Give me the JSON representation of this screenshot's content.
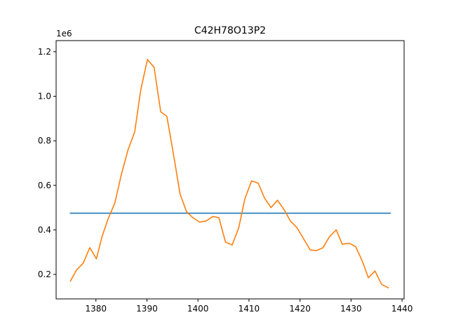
{
  "chart_data": {
    "type": "line",
    "title": "C42H78O13P2",
    "xlabel": "",
    "ylabel": "",
    "y_offset_label": "1e6",
    "xlim": [
      1372.2,
      1440.4
    ],
    "ylim": [
      0.09,
      1.25
    ],
    "grid": false,
    "legend": "none",
    "xticks": [
      1380,
      1390,
      1400,
      1410,
      1420,
      1430,
      1440
    ],
    "xtick_labels": [
      "1380",
      "1390",
      "1400",
      "1410",
      "1420",
      "1430",
      "1440"
    ],
    "yticks": [
      0.2,
      0.4,
      0.6,
      0.8,
      1.0,
      1.2
    ],
    "ytick_labels": [
      "0.2",
      "0.4",
      "0.6",
      "0.8",
      "1.0",
      "1.2"
    ],
    "series": [
      {
        "color": "#1f77b4",
        "x": [
          1375.0,
          1437.7
        ],
        "y": [
          0.475,
          0.475
        ]
      },
      {
        "color": "#ff7f0e",
        "x": [
          1375.0,
          1376.2,
          1377.5,
          1378.8,
          1380.1,
          1381.2,
          1382.4,
          1383.7,
          1385.0,
          1386.3,
          1387.6,
          1388.8,
          1390.1,
          1391.4,
          1392.7,
          1393.9,
          1395.2,
          1396.5,
          1397.8,
          1399.0,
          1400.3,
          1401.6,
          1402.9,
          1404.1,
          1405.4,
          1406.7,
          1408.0,
          1409.2,
          1410.5,
          1411.8,
          1413.0,
          1414.3,
          1415.6,
          1416.9,
          1418.1,
          1419.4,
          1420.7,
          1422.0,
          1423.2,
          1424.5,
          1425.8,
          1427.1,
          1428.3,
          1429.6,
          1430.9,
          1432.2,
          1433.4,
          1434.7,
          1436.0,
          1437.3
        ],
        "y": [
          0.17,
          0.22,
          0.25,
          0.32,
          0.27,
          0.37,
          0.45,
          0.52,
          0.65,
          0.76,
          0.84,
          1.03,
          1.165,
          1.13,
          0.93,
          0.91,
          0.74,
          0.56,
          0.48,
          0.455,
          0.435,
          0.44,
          0.46,
          0.455,
          0.345,
          0.332,
          0.41,
          0.54,
          0.62,
          0.61,
          0.545,
          0.5,
          0.533,
          0.49,
          0.44,
          0.41,
          0.36,
          0.31,
          0.307,
          0.32,
          0.37,
          0.4,
          0.335,
          0.34,
          0.325,
          0.26,
          0.185,
          0.215,
          0.155,
          0.14
        ]
      }
    ]
  }
}
